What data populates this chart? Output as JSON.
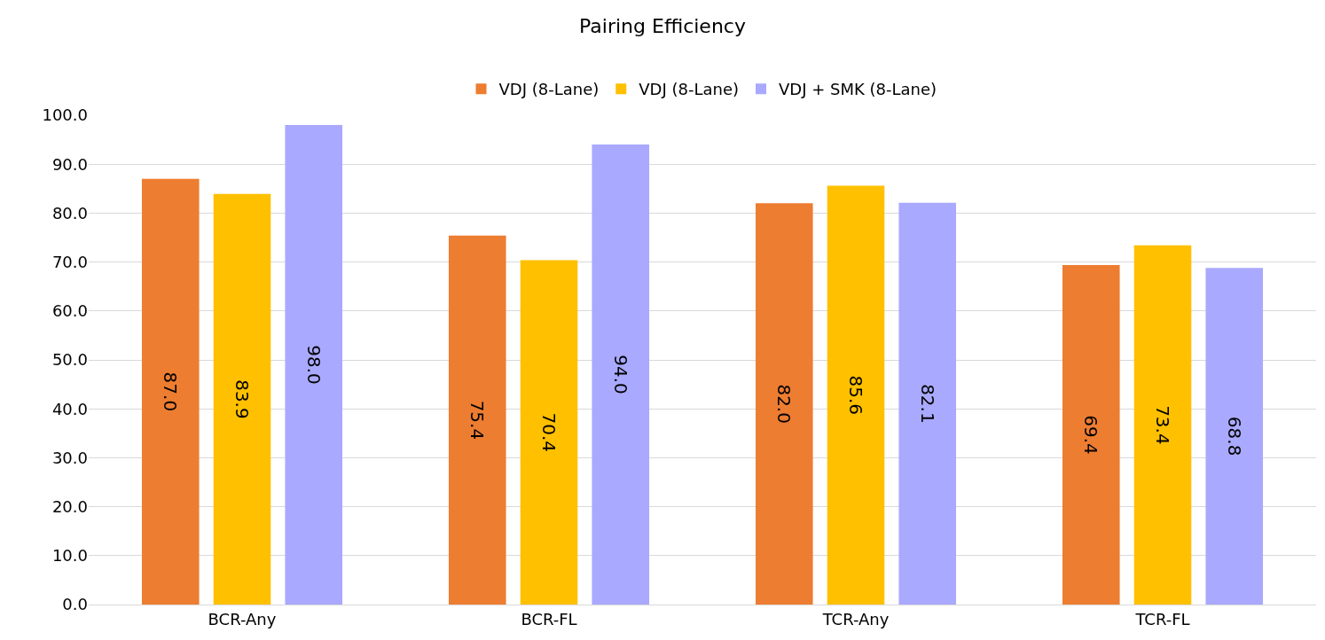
{
  "chart_data": {
    "type": "bar",
    "title": "Pairing Efficiency",
    "categories": [
      "BCR-Any",
      "BCR-FL",
      "TCR-Any",
      "TCR-FL"
    ],
    "series": [
      {
        "name": "VDJ (8-Lane)",
        "color": "#ed7d31",
        "values": [
          87.0,
          75.4,
          82.0,
          69.4
        ],
        "value_labels": [
          "87.0",
          "75.4",
          "82.0",
          "69.4"
        ]
      },
      {
        "name": "VDJ (8-Lane)",
        "color": "#ffc000",
        "values": [
          83.9,
          70.4,
          85.6,
          73.4
        ],
        "value_labels": [
          "83.9",
          "70.4",
          "85.6",
          "73.4"
        ]
      },
      {
        "name": "VDJ + SMK (8-Lane)",
        "color": "#a9a9ff",
        "values": [
          98.0,
          94.0,
          82.1,
          68.8
        ],
        "value_labels": [
          "98.0",
          "94.0",
          "82.1",
          "68.8"
        ]
      }
    ],
    "ylim": [
      0,
      100
    ],
    "yticks": [
      {
        "value": 0,
        "label": "0.0"
      },
      {
        "value": 10,
        "label": "10.0"
      },
      {
        "value": 20,
        "label": "20.0"
      },
      {
        "value": 30,
        "label": "30.0"
      },
      {
        "value": 40,
        "label": "40.0"
      },
      {
        "value": 50,
        "label": "50.0"
      },
      {
        "value": 60,
        "label": "60.0"
      },
      {
        "value": 70,
        "label": "70.0"
      },
      {
        "value": 80,
        "label": "80.0"
      },
      {
        "value": 90,
        "label": "90.0"
      },
      {
        "value": 100,
        "label": "100.0"
      }
    ],
    "grid": "y",
    "legend": "top"
  }
}
